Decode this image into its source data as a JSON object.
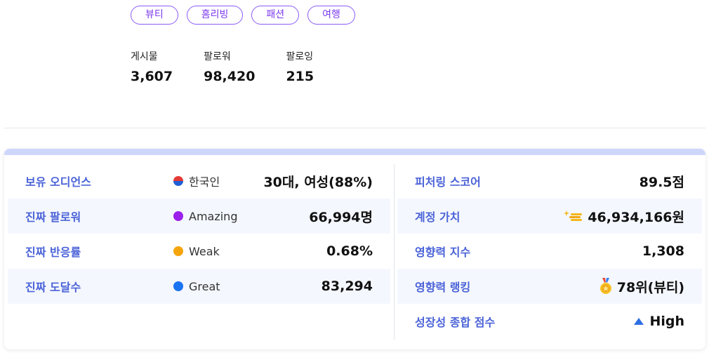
{
  "tags": [
    "뷰티",
    "홈리빙",
    "패션",
    "여행"
  ],
  "stats": [
    {
      "label": "게시물",
      "value": "3,607"
    },
    {
      "label": "팔로워",
      "value": "98,420"
    },
    {
      "label": "팔로잉",
      "value": "215"
    }
  ],
  "left_rows": [
    {
      "label": "보유 오디언스",
      "indicator": "한국인",
      "indicator_icon": "korea-flag-icon",
      "value": "30대, 여성(88%)"
    },
    {
      "label": "진짜 팔로워",
      "indicator": "Amazing",
      "indicator_color": "#9b20e9",
      "value": "66,994명"
    },
    {
      "label": "진짜 반응률",
      "indicator": "Weak",
      "indicator_color": "#f5a40b",
      "value": "0.68%"
    },
    {
      "label": "진짜 도달수",
      "indicator": "Great",
      "indicator_color": "#1a73f0",
      "value": "83,294"
    }
  ],
  "right_rows": [
    {
      "label": "피처링 스코어",
      "value": "89.5점"
    },
    {
      "label": "계정 가치",
      "value": "46,934,166원",
      "icon": "coins-icon"
    },
    {
      "label": "영향력 지수",
      "value": "1,308"
    },
    {
      "label": "영향력 랭킹",
      "value": "78위(뷰티)",
      "icon": "medal-icon"
    },
    {
      "label": "성장성 종합 점수",
      "value": "High",
      "icon": "arrow-up-icon"
    }
  ],
  "colors": {
    "accent_purple": "#7c3aed",
    "label_blue": "#4b63d8",
    "row_shade": "#f4f7fd",
    "card_bar": "#cfd6fb"
  }
}
